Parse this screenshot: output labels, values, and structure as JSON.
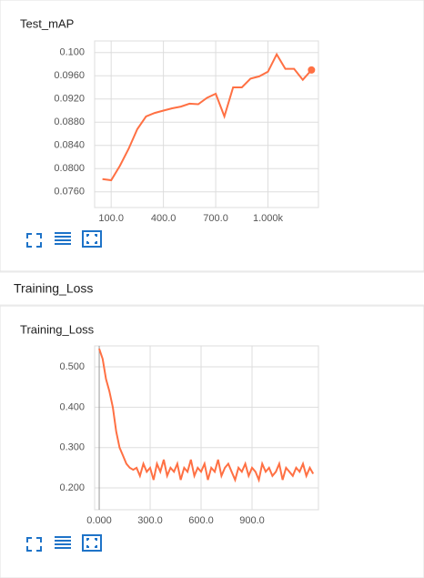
{
  "chart_data": [
    {
      "type": "line",
      "title": "Test_mAP",
      "color": "#ff7043",
      "grid": true,
      "x": [
        50,
        100,
        150,
        200,
        250,
        300,
        350,
        400,
        450,
        500,
        550,
        600,
        650,
        700,
        750,
        800,
        850,
        900,
        950,
        1000,
        1050,
        1100,
        1150,
        1200,
        1250
      ],
      "values": [
        0.0782,
        0.078,
        0.0805,
        0.0834,
        0.0868,
        0.089,
        0.0896,
        0.09,
        0.0904,
        0.0907,
        0.0912,
        0.0911,
        0.0922,
        0.0929,
        0.089,
        0.094,
        0.094,
        0.0955,
        0.0959,
        0.0967,
        0.0997,
        0.0972,
        0.0972,
        0.0953,
        0.097
      ],
      "xlim": [
        5,
        1290
      ],
      "ylim": [
        0.0733,
        0.102
      ],
      "xticks": [
        {
          "value": 100,
          "label": "100.0"
        },
        {
          "value": 400,
          "label": "400.0"
        },
        {
          "value": 700,
          "label": "700.0"
        },
        {
          "value": 1000,
          "label": "1.000k"
        }
      ],
      "yticks": [
        {
          "value": 0.1,
          "label": "0.100"
        },
        {
          "value": 0.096,
          "label": "0.0960"
        },
        {
          "value": 0.092,
          "label": "0.0920"
        },
        {
          "value": 0.088,
          "label": "0.0880"
        },
        {
          "value": 0.084,
          "label": "0.0840"
        },
        {
          "value": 0.08,
          "label": "0.0800"
        },
        {
          "value": 0.076,
          "label": "0.0760"
        }
      ]
    },
    {
      "type": "line",
      "title": "Training_Loss",
      "color": "#ff7043",
      "grid": true,
      "x": [
        0,
        20,
        40,
        60,
        80,
        100,
        120,
        140,
        160,
        180,
        200,
        220,
        240,
        260,
        280,
        300,
        320,
        340,
        360,
        380,
        400,
        420,
        440,
        460,
        480,
        500,
        520,
        540,
        560,
        580,
        600,
        620,
        640,
        660,
        680,
        700,
        720,
        740,
        760,
        780,
        800,
        820,
        840,
        860,
        880,
        900,
        920,
        940,
        960,
        980,
        1000,
        1020,
        1040,
        1060,
        1080,
        1100,
        1120,
        1140,
        1160,
        1180,
        1200,
        1220,
        1240,
        1260
      ],
      "values": [
        0.545,
        0.52,
        0.47,
        0.44,
        0.4,
        0.34,
        0.3,
        0.28,
        0.26,
        0.25,
        0.245,
        0.25,
        0.23,
        0.26,
        0.24,
        0.25,
        0.22,
        0.26,
        0.24,
        0.27,
        0.23,
        0.25,
        0.24,
        0.26,
        0.22,
        0.25,
        0.24,
        0.27,
        0.23,
        0.25,
        0.24,
        0.26,
        0.22,
        0.25,
        0.24,
        0.27,
        0.23,
        0.25,
        0.26,
        0.24,
        0.22,
        0.25,
        0.24,
        0.26,
        0.23,
        0.25,
        0.24,
        0.22,
        0.26,
        0.24,
        0.25,
        0.23,
        0.24,
        0.26,
        0.22,
        0.25,
        0.24,
        0.23,
        0.25,
        0.24,
        0.26,
        0.23,
        0.25,
        0.235
      ],
      "xlim": [
        -27,
        1291
      ],
      "ylim": [
        0.146,
        0.552
      ],
      "xticks": [
        {
          "value": 0,
          "label": "0.000"
        },
        {
          "value": 300,
          "label": "300.0"
        },
        {
          "value": 600,
          "label": "600.0"
        },
        {
          "value": 900,
          "label": "900.0"
        }
      ],
      "yticks": [
        {
          "value": 0.5,
          "label": "0.500"
        },
        {
          "value": 0.4,
          "label": "0.400"
        },
        {
          "value": 0.3,
          "label": "0.300"
        },
        {
          "value": 0.2,
          "label": "0.200"
        }
      ]
    }
  ],
  "section_title": "Training_Loss"
}
